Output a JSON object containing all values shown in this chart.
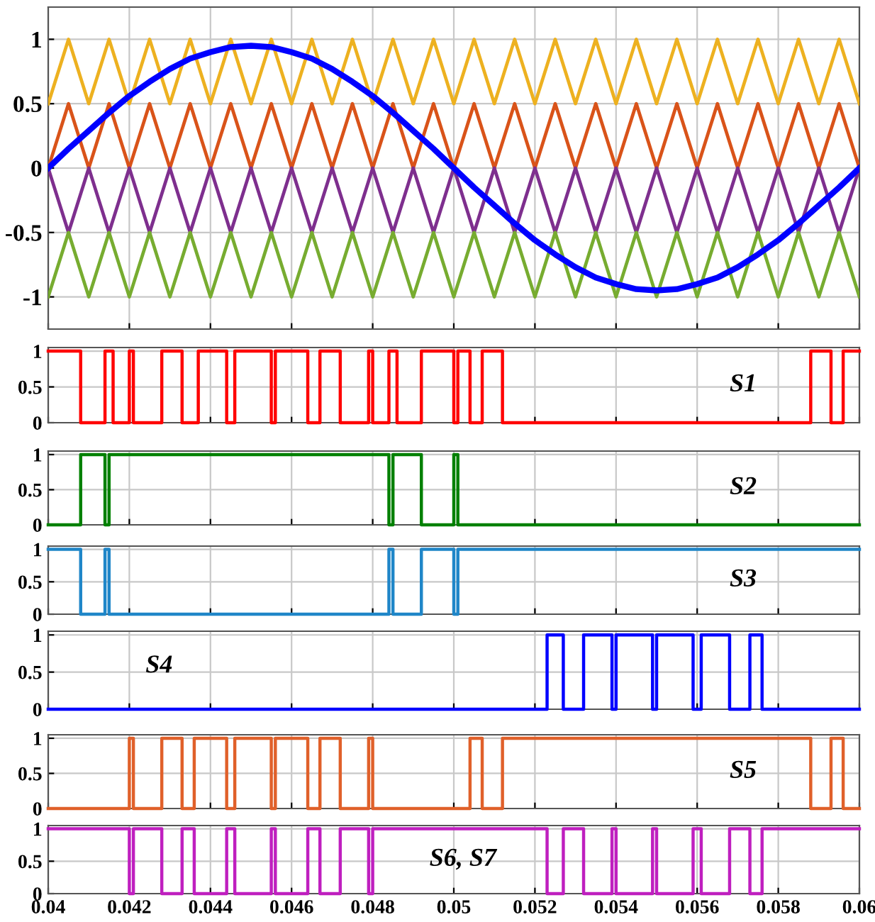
{
  "chart_data": [
    {
      "type": "line",
      "x": [
        0.04,
        0.0405,
        0.041,
        0.0415,
        0.042,
        0.0425,
        0.043,
        0.0435,
        0.044,
        0.0445,
        0.045,
        0.0455,
        0.046,
        0.0465,
        0.047,
        0.0475,
        0.048,
        0.0485,
        0.049,
        0.0495,
        0.05,
        0.0505,
        0.051,
        0.0515,
        0.052,
        0.0525,
        0.053,
        0.0535,
        0.054,
        0.0545,
        0.055,
        0.0555,
        0.056,
        0.0565,
        0.057,
        0.0575,
        0.058,
        0.0585,
        0.059,
        0.0595,
        0.06
      ],
      "series": [
        {
          "color": "#edb120",
          "values": [
            0.5,
            1,
            0.5,
            1,
            0.5,
            1,
            0.5,
            1,
            0.5,
            1,
            0.5,
            1,
            0.5,
            1,
            0.5,
            1,
            0.5,
            1,
            0.5,
            1,
            0.5,
            1,
            0.5,
            1,
            0.5,
            1,
            0.5,
            1,
            0.5,
            1,
            0.5,
            1,
            0.5,
            1,
            0.5,
            1,
            0.5,
            1,
            0.5,
            1,
            0.5
          ]
        },
        {
          "color": "#d95319",
          "values": [
            0,
            0.5,
            0,
            0.5,
            0,
            0.5,
            0,
            0.5,
            0,
            0.5,
            0,
            0.5,
            0,
            0.5,
            0,
            0.5,
            0,
            0.5,
            0,
            0.5,
            0,
            0.5,
            0,
            0.5,
            0,
            0.5,
            0,
            0.5,
            0,
            0.5,
            0,
            0.5,
            0,
            0.5,
            0,
            0.5,
            0,
            0.5,
            0,
            0.5,
            0
          ]
        },
        {
          "color": "#7e2f8e",
          "values": [
            0,
            -0.5,
            0,
            -0.5,
            0,
            -0.5,
            0,
            -0.5,
            0,
            -0.5,
            0,
            -0.5,
            0,
            -0.5,
            0,
            -0.5,
            0,
            -0.5,
            0,
            -0.5,
            0,
            -0.5,
            0,
            -0.5,
            0,
            -0.5,
            0,
            -0.5,
            0,
            -0.5,
            0,
            -0.5,
            0,
            -0.5,
            0,
            -0.5,
            0,
            -0.5,
            0,
            -0.5,
            0
          ]
        },
        {
          "color": "#77ac30",
          "values": [
            -1,
            -0.5,
            -1,
            -0.5,
            -1,
            -0.5,
            -1,
            -0.5,
            -1,
            -0.5,
            -1,
            -0.5,
            -1,
            -0.5,
            -1,
            -0.5,
            -1,
            -0.5,
            -1,
            -0.5,
            -1,
            -0.5,
            -1,
            -0.5,
            -1,
            -0.5,
            -1,
            -0.5,
            -1,
            -0.5,
            -1,
            -0.5,
            -1,
            -0.5,
            -1,
            -0.5,
            -1,
            -0.5,
            -1,
            -0.5,
            -1
          ]
        },
        {
          "color": "#0000ff",
          "values": [
            0,
            0.15,
            0.29,
            0.43,
            0.56,
            0.67,
            0.77,
            0.85,
            0.9,
            0.94,
            0.95,
            0.94,
            0.9,
            0.85,
            0.77,
            0.67,
            0.56,
            0.43,
            0.29,
            0.15,
            0,
            -0.15,
            -0.29,
            -0.43,
            -0.56,
            -0.67,
            -0.77,
            -0.85,
            -0.9,
            -0.94,
            -0.95,
            -0.94,
            -0.9,
            -0.85,
            -0.77,
            -0.67,
            -0.56,
            -0.43,
            -0.29,
            -0.15,
            0
          ]
        }
      ],
      "xlim": [
        0.04,
        0.06
      ],
      "xticks": [
        0.04,
        0.042,
        0.044,
        0.046,
        0.048,
        0.05,
        0.052,
        0.054,
        0.056,
        0.058,
        0.06
      ],
      "ylim": [
        -1.25,
        1.25
      ],
      "yticks": [
        -1,
        -0.5,
        0,
        0.5,
        1
      ],
      "grid": true,
      "tick_labels": "y"
    },
    {
      "type": "step",
      "series": [
        {
          "name": "S1",
          "color": "#ff0000",
          "x": [
            0.04,
            0.0408,
            0.0414,
            0.0416,
            0.042,
            0.0421,
            0.0428,
            0.0433,
            0.0437,
            0.0444,
            0.0446,
            0.0455,
            0.0456,
            0.0464,
            0.0467,
            0.0472,
            0.0479,
            0.048,
            0.0484,
            0.0486,
            0.0492,
            0.05,
            0.0501,
            0.0504,
            0.0507,
            0.0512,
            0.0588,
            0.0593,
            0.0596,
            0.06
          ],
          "values": [
            1,
            0,
            1,
            0,
            1,
            0,
            1,
            0,
            1,
            0,
            1,
            0,
            1,
            0,
            1,
            0,
            1,
            0,
            1,
            0,
            1,
            0,
            1,
            0,
            1,
            0,
            1,
            0,
            1,
            1
          ]
        }
      ],
      "xlim": [
        0.04,
        0.06
      ],
      "xticks": [
        0.04,
        0.042,
        0.044,
        0.046,
        0.048,
        0.05,
        0.052,
        0.054,
        0.056,
        0.058,
        0.06
      ],
      "ylim": [
        0,
        1.05
      ],
      "yticks": [
        0,
        0.5,
        1
      ],
      "grid": true,
      "tick_labels": "y"
    },
    {
      "type": "step",
      "series": [
        {
          "name": "S2",
          "color": "#008000",
          "x": [
            0.04,
            0.0408,
            0.0414,
            0.0415,
            0.0484,
            0.0485,
            0.0492,
            0.05,
            0.0501,
            0.06
          ],
          "values": [
            0,
            1,
            0,
            1,
            0,
            1,
            0,
            1,
            0,
            0
          ]
        }
      ],
      "xlim": [
        0.04,
        0.06
      ],
      "xticks": [
        0.04,
        0.042,
        0.044,
        0.046,
        0.048,
        0.05,
        0.052,
        0.054,
        0.056,
        0.058,
        0.06
      ],
      "ylim": [
        0,
        1.05
      ],
      "yticks": [
        0,
        0.5,
        1
      ],
      "grid": true,
      "tick_labels": "y"
    },
    {
      "type": "step",
      "series": [
        {
          "name": "S3",
          "color": "#1f86c8",
          "x": [
            0.04,
            0.0408,
            0.0414,
            0.0415,
            0.0484,
            0.0485,
            0.0492,
            0.05,
            0.0501,
            0.06
          ],
          "values": [
            1,
            0,
            1,
            0,
            1,
            0,
            1,
            0,
            1,
            1
          ]
        }
      ],
      "xlim": [
        0.04,
        0.06
      ],
      "xticks": [
        0.04,
        0.042,
        0.044,
        0.046,
        0.048,
        0.05,
        0.052,
        0.054,
        0.056,
        0.058,
        0.06
      ],
      "ylim": [
        0,
        1.05
      ],
      "yticks": [
        0,
        0.5,
        1
      ],
      "grid": true,
      "tick_labels": "y"
    },
    {
      "type": "step",
      "series": [
        {
          "name": "S4",
          "color": "#0000ff",
          "x": [
            0.04,
            0.0523,
            0.0527,
            0.0532,
            0.0539,
            0.054,
            0.0549,
            0.055,
            0.0559,
            0.0561,
            0.0568,
            0.0573,
            0.0576,
            0.06
          ],
          "values": [
            0,
            1,
            0,
            1,
            0,
            1,
            0,
            1,
            0,
            1,
            0,
            1,
            0,
            0
          ]
        }
      ],
      "xlim": [
        0.04,
        0.06
      ],
      "xticks": [
        0.04,
        0.042,
        0.044,
        0.046,
        0.048,
        0.05,
        0.052,
        0.054,
        0.056,
        0.058,
        0.06
      ],
      "ylim": [
        0,
        1.05
      ],
      "yticks": [
        0,
        0.5,
        1
      ],
      "grid": true,
      "tick_labels": "y"
    },
    {
      "type": "step",
      "series": [
        {
          "name": "S5",
          "color": "#e0602a",
          "x": [
            0.04,
            0.042,
            0.0421,
            0.0428,
            0.0433,
            0.0436,
            0.0444,
            0.0446,
            0.0455,
            0.0456,
            0.0464,
            0.0467,
            0.0472,
            0.0479,
            0.048,
            0.0504,
            0.0507,
            0.0512,
            0.0588,
            0.0593,
            0.0596,
            0.06
          ],
          "values": [
            0,
            1,
            0,
            1,
            0,
            1,
            0,
            1,
            0,
            1,
            0,
            1,
            0,
            1,
            0,
            1,
            0,
            1,
            0,
            1,
            0,
            0
          ]
        }
      ],
      "xlim": [
        0.04,
        0.06
      ],
      "xticks": [
        0.04,
        0.042,
        0.044,
        0.046,
        0.048,
        0.05,
        0.052,
        0.054,
        0.056,
        0.058,
        0.06
      ],
      "ylim": [
        0,
        1.05
      ],
      "yticks": [
        0,
        0.5,
        1
      ],
      "grid": true,
      "tick_labels": "y"
    },
    {
      "type": "step",
      "series": [
        {
          "name": "S6, S7",
          "color": "#bf1fbf",
          "x": [
            0.04,
            0.042,
            0.0421,
            0.0428,
            0.0433,
            0.0436,
            0.0444,
            0.0446,
            0.0455,
            0.0456,
            0.0464,
            0.0467,
            0.0472,
            0.0479,
            0.048,
            0.0523,
            0.0527,
            0.0532,
            0.0539,
            0.054,
            0.0549,
            0.055,
            0.0559,
            0.0561,
            0.0568,
            0.0573,
            0.0576,
            0.06
          ],
          "values": [
            1,
            0,
            1,
            0,
            1,
            0,
            1,
            0,
            1,
            0,
            1,
            0,
            1,
            0,
            1,
            0,
            1,
            0,
            1,
            0,
            1,
            0,
            1,
            0,
            1,
            0,
            1,
            1
          ]
        }
      ],
      "xlim": [
        0.04,
        0.06
      ],
      "xticks": [
        0.04,
        0.042,
        0.044,
        0.046,
        0.048,
        0.05,
        0.052,
        0.054,
        0.056,
        0.058,
        0.06
      ],
      "ylim": [
        0,
        1.05
      ],
      "yticks": [
        0,
        0.5,
        1
      ],
      "grid": true
    }
  ]
}
